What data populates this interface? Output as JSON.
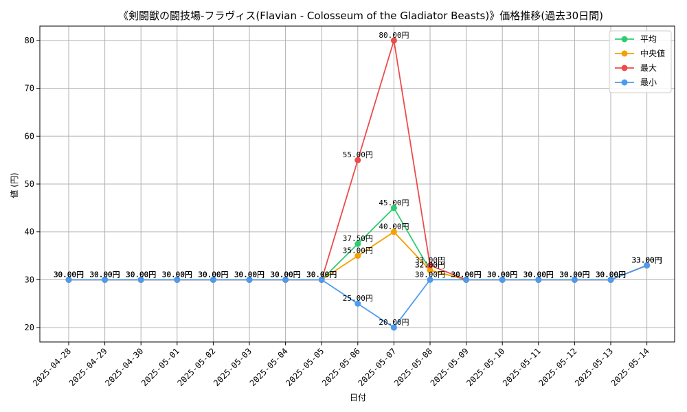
{
  "chart_data": {
    "type": "line",
    "title": "《剣闘獣の闘技場-フラヴィス(Flavian - Colosseum of the Gladiator Beasts)》価格推移(過去30日間)",
    "xlabel": "日付",
    "ylabel": "値 (円)",
    "value_suffix": "円",
    "ylim": [
      17,
      83
    ],
    "yticks": [
      20,
      30,
      40,
      50,
      60,
      70,
      80
    ],
    "grid": true,
    "legend_position": "top-right",
    "categories": [
      "2025-04-28",
      "2025-04-29",
      "2025-04-30",
      "2025-05-01",
      "2025-05-02",
      "2025-05-03",
      "2025-05-04",
      "2025-05-05",
      "2025-05-06",
      "2025-05-07",
      "2025-05-08",
      "2025-05-09",
      "2025-05-10",
      "2025-05-11",
      "2025-05-12",
      "2025-05-13",
      "2025-05-14"
    ],
    "series": [
      {
        "name": "平均",
        "color": "#2ecc71",
        "values": [
          30,
          30,
          30,
          30,
          30,
          30,
          30,
          30,
          37.5,
          45,
          32,
          30,
          30,
          30,
          30,
          30,
          33
        ]
      },
      {
        "name": "中央値",
        "color": "#f5a000",
        "values": [
          30,
          30,
          30,
          30,
          30,
          30,
          30,
          30,
          35,
          40,
          32,
          30,
          30,
          30,
          30,
          30,
          33
        ]
      },
      {
        "name": "最大",
        "color": "#ee4a4a",
        "values": [
          30,
          30,
          30,
          30,
          30,
          30,
          30,
          30,
          55,
          80,
          33,
          30,
          30,
          30,
          30,
          30,
          33
        ]
      },
      {
        "name": "最小",
        "color": "#4d9bf0",
        "values": [
          30,
          30,
          30,
          30,
          30,
          30,
          30,
          30,
          25,
          20,
          30,
          30,
          30,
          30,
          30,
          30,
          33
        ]
      }
    ]
  }
}
